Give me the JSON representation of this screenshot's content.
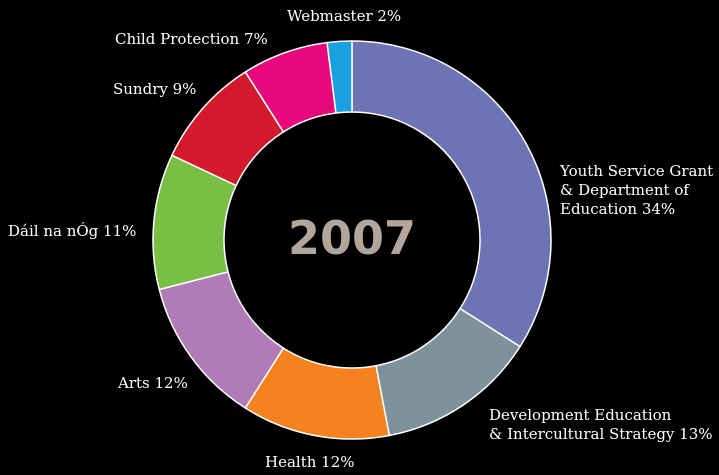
{
  "chart_data": {
    "type": "pie",
    "donut": true,
    "center_text": "2007",
    "center_text_color": "#b4a59b",
    "slices": [
      {
        "label_lines": [
          "Youth Service Grant",
          "& Department of",
          "Education 34%"
        ],
        "value": 34,
        "color": "#6d74b3"
      },
      {
        "label_lines": [
          "Development Education",
          "& Intercultural Strategy 13%"
        ],
        "value": 13,
        "color": "#7e929b"
      },
      {
        "label_lines": [
          "Health 12%"
        ],
        "value": 12,
        "color": "#f4821f"
      },
      {
        "label_lines": [
          "Arts 12%"
        ],
        "value": 12,
        "color": "#b07bb6"
      },
      {
        "label_lines": [
          "Dáil na nÓg 11%"
        ],
        "value": 11,
        "color": "#79bf46"
      },
      {
        "label_lines": [
          "Sundry 9%"
        ],
        "value": 9,
        "color": "#d3192c"
      },
      {
        "label_lines": [
          "Child Protection 7%"
        ],
        "value": 7,
        "color": "#e8087c"
      },
      {
        "label_lines": [
          "Webmaster 2%"
        ],
        "value": 2,
        "color": "#1aa1e2"
      }
    ]
  }
}
